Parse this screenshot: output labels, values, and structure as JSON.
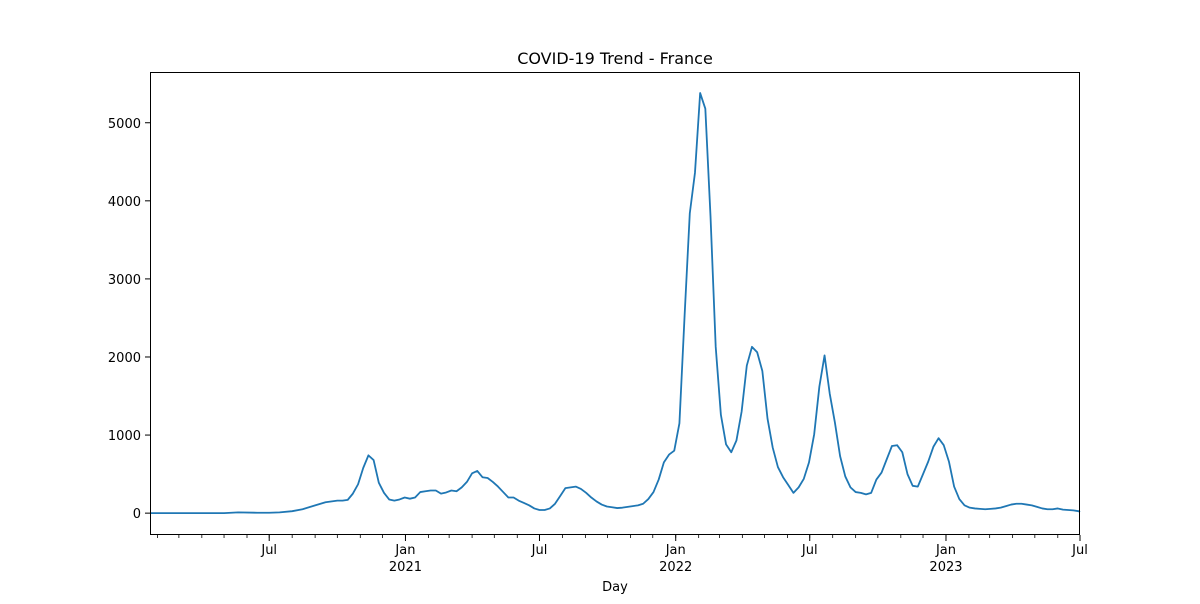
{
  "chart_data": {
    "type": "line",
    "title": "COVID-19 Trend - France",
    "xlabel": "Day",
    "ylabel": "",
    "x_range": [
      "2020-01-22",
      "2023-07-01"
    ],
    "ylim": [
      -280,
      5650
    ],
    "grid": false,
    "legend": "none",
    "line_color": "#1f77b4",
    "x_ticks_major": [
      {
        "date": "2020-07-01",
        "label": "Jul",
        "year_label": ""
      },
      {
        "date": "2021-01-01",
        "label": "Jan",
        "year_label": "2021"
      },
      {
        "date": "2021-07-01",
        "label": "Jul",
        "year_label": ""
      },
      {
        "date": "2022-01-01",
        "label": "Jan",
        "year_label": "2022"
      },
      {
        "date": "2022-07-01",
        "label": "Jul",
        "year_label": ""
      },
      {
        "date": "2023-01-01",
        "label": "Jan",
        "year_label": "2023"
      },
      {
        "date": "2023-07-01",
        "label": "Jul",
        "year_label": ""
      }
    ],
    "y_ticks": [
      0,
      1000,
      2000,
      3000,
      4000,
      5000
    ],
    "series": [
      {
        "name": "",
        "x": [
          "2020-01-22",
          "2020-03-01",
          "2020-05-01",
          "2020-05-20",
          "2020-06-15",
          "2020-07-01",
          "2020-07-15",
          "2020-08-01",
          "2020-08-15",
          "2020-09-01",
          "2020-09-15",
          "2020-10-01",
          "2020-10-08",
          "2020-10-15",
          "2020-10-22",
          "2020-10-29",
          "2020-11-05",
          "2020-11-12",
          "2020-11-19",
          "2020-11-26",
          "2020-12-03",
          "2020-12-10",
          "2020-12-17",
          "2020-12-24",
          "2020-12-31",
          "2021-01-07",
          "2021-01-14",
          "2021-01-21",
          "2021-01-28",
          "2021-02-04",
          "2021-02-11",
          "2021-02-18",
          "2021-02-25",
          "2021-03-04",
          "2021-03-11",
          "2021-03-18",
          "2021-03-25",
          "2021-04-01",
          "2021-04-08",
          "2021-04-15",
          "2021-04-22",
          "2021-04-29",
          "2021-05-06",
          "2021-05-13",
          "2021-05-20",
          "2021-05-27",
          "2021-06-03",
          "2021-06-10",
          "2021-06-17",
          "2021-06-24",
          "2021-07-01",
          "2021-07-08",
          "2021-07-15",
          "2021-07-22",
          "2021-07-29",
          "2021-08-05",
          "2021-08-12",
          "2021-08-19",
          "2021-08-26",
          "2021-09-02",
          "2021-09-09",
          "2021-09-16",
          "2021-09-23",
          "2021-09-30",
          "2021-10-07",
          "2021-10-14",
          "2021-10-21",
          "2021-10-28",
          "2021-11-04",
          "2021-11-11",
          "2021-11-18",
          "2021-11-25",
          "2021-12-02",
          "2021-12-09",
          "2021-12-16",
          "2021-12-23",
          "2021-12-30",
          "2022-01-06",
          "2022-01-13",
          "2022-01-20",
          "2022-01-27",
          "2022-02-03",
          "2022-02-10",
          "2022-02-17",
          "2022-02-24",
          "2022-03-03",
          "2022-03-10",
          "2022-03-17",
          "2022-03-24",
          "2022-03-31",
          "2022-04-07",
          "2022-04-14",
          "2022-04-21",
          "2022-04-28",
          "2022-05-05",
          "2022-05-12",
          "2022-05-19",
          "2022-05-26",
          "2022-06-02",
          "2022-06-09",
          "2022-06-16",
          "2022-06-23",
          "2022-06-30",
          "2022-07-07",
          "2022-07-14",
          "2022-07-21",
          "2022-07-28",
          "2022-08-04",
          "2022-08-11",
          "2022-08-18",
          "2022-08-25",
          "2022-09-01",
          "2022-09-08",
          "2022-09-15",
          "2022-09-22",
          "2022-09-29",
          "2022-10-06",
          "2022-10-13",
          "2022-10-20",
          "2022-10-27",
          "2022-11-03",
          "2022-11-10",
          "2022-11-17",
          "2022-11-24",
          "2022-12-01",
          "2022-12-08",
          "2022-12-15",
          "2022-12-22",
          "2022-12-29",
          "2023-01-05",
          "2023-01-12",
          "2023-01-19",
          "2023-01-26",
          "2023-02-02",
          "2023-02-09",
          "2023-02-16",
          "2023-02-23",
          "2023-03-02",
          "2023-03-09",
          "2023-03-16",
          "2023-03-23",
          "2023-03-30",
          "2023-04-06",
          "2023-04-13",
          "2023-04-20",
          "2023-04-27",
          "2023-05-04",
          "2023-05-11",
          "2023-05-18",
          "2023-05-25",
          "2023-06-01",
          "2023-06-08",
          "2023-06-15",
          "2023-06-22",
          "2023-06-29",
          "2023-07-01"
        ],
        "y": [
          0,
          0,
          0,
          10,
          5,
          5,
          10,
          25,
          50,
          100,
          140,
          160,
          160,
          170,
          250,
          370,
          580,
          740,
          680,
          390,
          260,
          175,
          160,
          175,
          200,
          185,
          200,
          270,
          280,
          290,
          290,
          250,
          265,
          290,
          280,
          330,
          400,
          510,
          540,
          460,
          450,
          400,
          340,
          270,
          200,
          200,
          160,
          130,
          100,
          60,
          40,
          40,
          60,
          120,
          220,
          320,
          330,
          340,
          310,
          260,
          200,
          150,
          110,
          85,
          75,
          65,
          70,
          80,
          90,
          100,
          120,
          180,
          270,
          430,
          650,
          750,
          800,
          1150,
          2530,
          3840,
          4360,
          5380,
          5180,
          3800,
          2130,
          1260,
          880,
          780,
          930,
          1300,
          1890,
          2130,
          2060,
          1820,
          1210,
          840,
          590,
          460,
          360,
          260,
          330,
          440,
          650,
          1010,
          1620,
          2020,
          1530,
          1160,
          730,
          470,
          330,
          270,
          260,
          240,
          260,
          430,
          520,
          690,
          860,
          870,
          780,
          500,
          350,
          340,
          500,
          660,
          850,
          960,
          870,
          660,
          340,
          180,
          100,
          70,
          60,
          55,
          50,
          55,
          60,
          70,
          90,
          110,
          120,
          120,
          110,
          100,
          80,
          60,
          50,
          50,
          60,
          45,
          40,
          35,
          25,
          15
        ]
      }
    ]
  }
}
